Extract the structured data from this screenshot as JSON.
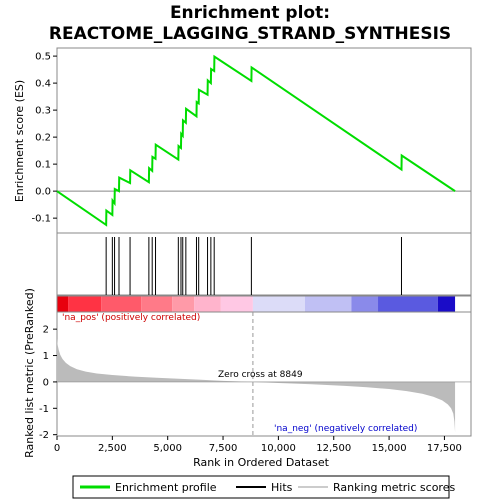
{
  "chart_data": {
    "type": "line",
    "title_line1": "Enrichment plot:",
    "title_line2": "REACTOME_LAGGING_STRAND_SYNTHESIS",
    "colors": {
      "enrichment_line": "#00dd00",
      "hits": "#000000",
      "metric_fill": "#bbbbbb",
      "pos_text": "#cc0000",
      "neg_text": "#0000cc",
      "zero_line": "#999999"
    },
    "top_panel": {
      "ylabel": "Enrichment score (ES)",
      "ylim": [
        -0.155,
        0.53
      ],
      "yticks": [
        -0.1,
        0.0,
        0.1,
        0.2,
        0.3,
        0.4,
        0.5
      ],
      "ytick_labels": [
        "-0.1",
        "0.0",
        "0.1",
        "0.2",
        "0.3",
        "0.4",
        "0.5"
      ],
      "series": {
        "name": "Enrichment profile",
        "x": [
          0,
          2220,
          2230,
          2500,
          2510,
          2600,
          2610,
          2800,
          2810,
          3300,
          3310,
          4150,
          4160,
          4300,
          4310,
          4450,
          4460,
          5480,
          5490,
          5600,
          5610,
          5680,
          5690,
          5820,
          5830,
          6300,
          6310,
          6400,
          6410,
          6800,
          6810,
          6950,
          6960,
          7100,
          7110,
          8780,
          8790,
          15560,
          15570,
          17980
        ],
        "y": [
          0.0,
          -0.125,
          -0.072,
          -0.088,
          -0.035,
          -0.045,
          0.008,
          0.0,
          0.05,
          0.03,
          0.077,
          0.033,
          0.085,
          0.075,
          0.127,
          0.12,
          0.172,
          0.117,
          0.167,
          0.16,
          0.212,
          0.205,
          0.262,
          0.253,
          0.305,
          0.277,
          0.33,
          0.325,
          0.375,
          0.357,
          0.41,
          0.4,
          0.452,
          0.445,
          0.498,
          0.408,
          0.458,
          0.08,
          0.132,
          0.0
        ]
      }
    },
    "hits_panel": {
      "hit_positions": [
        2220,
        2500,
        2600,
        2800,
        3300,
        4150,
        4300,
        4450,
        5480,
        5600,
        5680,
        5820,
        6300,
        6400,
        6800,
        6950,
        7100,
        8780,
        15560
      ]
    },
    "color_bar": {
      "segments": [
        {
          "start": 0,
          "end": 500,
          "color": "#e8000e"
        },
        {
          "start": 500,
          "end": 2000,
          "color": "#ff3344"
        },
        {
          "start": 2000,
          "end": 3800,
          "color": "#ff5a6a"
        },
        {
          "start": 3800,
          "end": 5200,
          "color": "#ff7a88"
        },
        {
          "start": 5200,
          "end": 6200,
          "color": "#ff9aa8"
        },
        {
          "start": 6200,
          "end": 7400,
          "color": "#ffb4cc"
        },
        {
          "start": 7400,
          "end": 8849,
          "color": "#ffc8e4"
        },
        {
          "start": 8849,
          "end": 11200,
          "color": "#dcdcf8"
        },
        {
          "start": 11200,
          "end": 13300,
          "color": "#c0c0f4"
        },
        {
          "start": 13300,
          "end": 14500,
          "color": "#8a8aea"
        },
        {
          "start": 14500,
          "end": 17200,
          "color": "#5a5ae0"
        },
        {
          "start": 17200,
          "end": 17980,
          "color": "#1a0cc8"
        }
      ]
    },
    "bottom_panel": {
      "ylabel": "Ranked list metric (PreRanked)",
      "ylim": [
        -2.05,
        2.65
      ],
      "yticks": [
        -2,
        -1,
        0,
        1,
        2
      ],
      "ytick_labels": [
        "-2",
        "-1",
        "0",
        "1",
        "2"
      ],
      "metric_curve": {
        "x": [
          0,
          30,
          80,
          150,
          250,
          400,
          600,
          900,
          1300,
          1800,
          2500,
          3500,
          4500,
          5500,
          6500,
          7500,
          8849,
          10000,
          11500,
          13000,
          14000,
          15000,
          15800,
          16500,
          17000,
          17400,
          17650,
          17800,
          17900,
          17950,
          17980
        ],
        "y": [
          1.65,
          1.4,
          1.2,
          1.02,
          0.87,
          0.72,
          0.6,
          0.48,
          0.39,
          0.32,
          0.26,
          0.2,
          0.16,
          0.12,
          0.08,
          0.04,
          0.0,
          -0.04,
          -0.09,
          -0.15,
          -0.2,
          -0.27,
          -0.35,
          -0.45,
          -0.56,
          -0.7,
          -0.85,
          -1.0,
          -1.2,
          -1.5,
          -1.9
        ]
      },
      "pos_label": "'na_pos' (positively correlated)",
      "neg_label": "'na_neg' (negatively correlated)",
      "zero_cross_label": "Zero cross at 8849",
      "zero_cross": 8849
    },
    "x_axis": {
      "label": "Rank in Ordered Dataset",
      "xlim": [
        0,
        18700
      ],
      "ticks": [
        0,
        2500,
        5000,
        7500,
        10000,
        12500,
        15000,
        17500
      ],
      "tick_labels": [
        "0",
        "2,500",
        "5,000",
        "7,500",
        "10,000",
        "12,500",
        "15,000",
        "17,500"
      ]
    },
    "legend": {
      "items": [
        {
          "label": "Enrichment profile",
          "color": "#00dd00"
        },
        {
          "label": "Hits",
          "color": "#000000"
        },
        {
          "label": "Ranking metric scores",
          "color": "#bbbbbb"
        }
      ]
    }
  }
}
